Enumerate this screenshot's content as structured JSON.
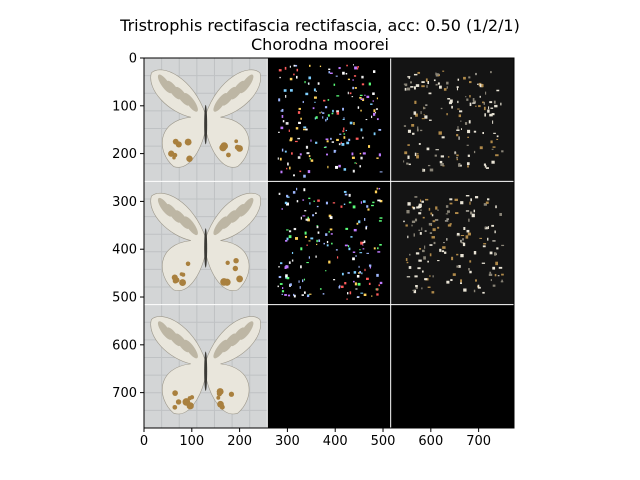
{
  "chart_data": {
    "type": "image-grid",
    "title": "Tristrophis rectifascia rectifascia, acc: 0.50 (1/2/1)",
    "subtitle": "Chorodna moorei",
    "xlim": [
      0,
      774
    ],
    "ylim": [
      774,
      0
    ],
    "x_ticks": [
      0,
      100,
      200,
      300,
      400,
      500,
      600,
      700
    ],
    "y_ticks": [
      0,
      100,
      200,
      300,
      400,
      500,
      600,
      700
    ],
    "cell_size": 258,
    "grid": {
      "rows": 3,
      "cols": 3
    },
    "cells": [
      {
        "row": 0,
        "col": 0,
        "kind": "photo"
      },
      {
        "row": 0,
        "col": 1,
        "kind": "attribution-map"
      },
      {
        "row": 0,
        "col": 2,
        "kind": "masked-photo"
      },
      {
        "row": 1,
        "col": 0,
        "kind": "photo"
      },
      {
        "row": 1,
        "col": 1,
        "kind": "attribution-map"
      },
      {
        "row": 1,
        "col": 2,
        "kind": "masked-photo"
      },
      {
        "row": 2,
        "col": 0,
        "kind": "photo"
      },
      {
        "row": 2,
        "col": 1,
        "kind": "blank"
      },
      {
        "row": 2,
        "col": 2,
        "kind": "blank"
      }
    ],
    "colors": {
      "photo_bg": "#d3d5d6",
      "wing": "#e9e6dc",
      "wing_band": "#bdb6a4",
      "wing_spot": "#a9803e",
      "separator": "#ffffff",
      "dark_cell": "#000000",
      "masked_bg": "#141414"
    }
  }
}
